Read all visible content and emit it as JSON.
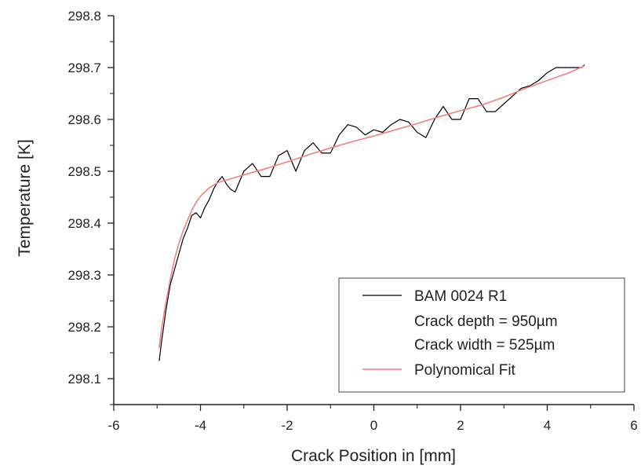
{
  "chart_data": {
    "type": "line",
    "title": "",
    "xlabel": "Crack Position in [mm]",
    "ylabel": "Temperature [K]",
    "xlim": [
      -6,
      6
    ],
    "ylim": [
      298.05,
      298.8
    ],
    "x_ticks": [
      -6,
      -4,
      -2,
      0,
      2,
      4,
      6
    ],
    "x_tick_labels": [
      "-6",
      "-4",
      "-2",
      "0",
      "2",
      "4",
      "6"
    ],
    "y_ticks": [
      298.1,
      298.2,
      298.3,
      298.4,
      298.5,
      298.6,
      298.7,
      298.8
    ],
    "y_tick_labels": [
      "298.1",
      "298.2",
      "298.3",
      "298.4",
      "298.5",
      "298.6",
      "298.7",
      "298.8"
    ],
    "grid": false,
    "legend_position": "bottom-right",
    "legend_lines": [
      "Crack depth = 950µm",
      "Crack width  = 525µm"
    ],
    "series": [
      {
        "name": "BAM 0024 R1",
        "color": "#000000",
        "x": [
          -4.95,
          -4.9,
          -4.85,
          -4.8,
          -4.75,
          -4.7,
          -4.6,
          -4.5,
          -4.4,
          -4.3,
          -4.2,
          -4.1,
          -4.0,
          -3.9,
          -3.8,
          -3.7,
          -3.6,
          -3.5,
          -3.4,
          -3.3,
          -3.2,
          -3.0,
          -2.8,
          -2.6,
          -2.4,
          -2.2,
          -2.0,
          -1.8,
          -1.6,
          -1.4,
          -1.2,
          -1.0,
          -0.8,
          -0.6,
          -0.4,
          -0.2,
          0.0,
          0.2,
          0.4,
          0.6,
          0.8,
          1.0,
          1.2,
          1.4,
          1.6,
          1.8,
          2.0,
          2.2,
          2.4,
          2.6,
          2.8,
          3.0,
          3.2,
          3.4,
          3.6,
          3.8,
          4.0,
          4.2,
          4.4,
          4.6,
          4.8,
          4.85
        ],
        "values": [
          298.135,
          298.17,
          298.2,
          298.23,
          298.255,
          298.28,
          298.31,
          298.34,
          298.37,
          298.39,
          298.415,
          298.42,
          298.41,
          298.43,
          298.445,
          298.465,
          298.48,
          298.49,
          298.475,
          298.465,
          298.46,
          298.5,
          298.515,
          298.49,
          298.49,
          298.53,
          298.54,
          298.5,
          298.54,
          298.555,
          298.535,
          298.535,
          298.57,
          298.59,
          298.585,
          298.57,
          298.58,
          298.575,
          298.59,
          298.6,
          298.595,
          298.575,
          298.565,
          298.6,
          298.625,
          298.6,
          298.6,
          298.64,
          298.64,
          298.615,
          298.615,
          298.63,
          298.645,
          298.66,
          298.665,
          298.675,
          298.69,
          298.7,
          298.7,
          298.7,
          298.7,
          298.705
        ]
      },
      {
        "name": "Polynomical Fit",
        "color": "#f08080",
        "x": [
          -4.95,
          -4.9,
          -4.8,
          -4.7,
          -4.6,
          -4.5,
          -4.4,
          -4.3,
          -4.2,
          -4.1,
          -4.0,
          -3.9,
          -3.8,
          -3.6,
          -3.4,
          -3.2,
          -3.0,
          -2.5,
          -2.0,
          -1.5,
          -1.0,
          -0.5,
          0.0,
          0.5,
          1.0,
          1.5,
          2.0,
          2.5,
          3.0,
          3.5,
          4.0,
          4.5,
          4.85
        ],
        "values": [
          298.16,
          298.195,
          298.245,
          298.29,
          298.33,
          298.36,
          298.385,
          298.405,
          298.425,
          298.44,
          298.452,
          298.46,
          298.468,
          298.478,
          298.483,
          298.488,
          298.493,
          298.505,
          298.518,
          298.532,
          298.545,
          298.557,
          298.568,
          298.58,
          298.592,
          298.605,
          298.617,
          298.628,
          298.643,
          298.66,
          298.675,
          298.69,
          298.703
        ]
      }
    ]
  }
}
